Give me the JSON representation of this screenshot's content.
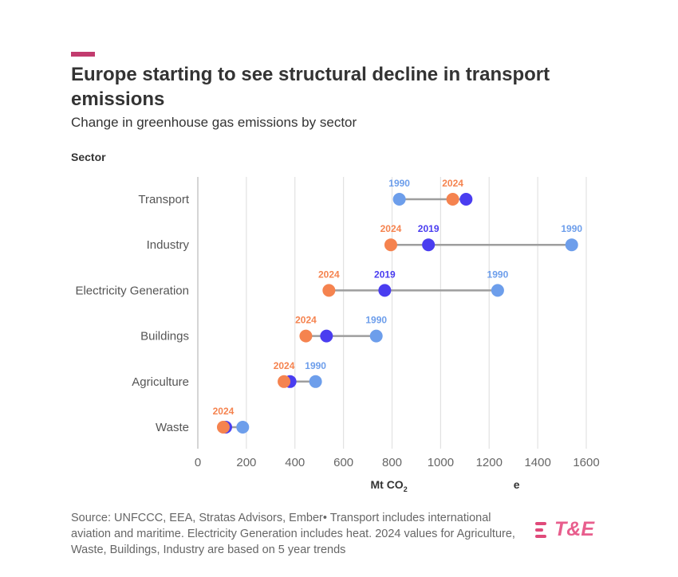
{
  "header": {
    "title": "Europe starting to see structural decline in transport emissions",
    "subtitle": "Change in greenhouse gas emissions by sector",
    "y_axis_title": "Sector"
  },
  "x_axis": {
    "label_main": "Mt CO",
    "label_sub": "2",
    "label_end": "e"
  },
  "footer": {
    "source": "Source: UNFCCC, EEA, Stratas Advisors, Ember• Transport includes international aviation and maritime. Electricity Generation includes heat. 2024 values for Agriculture, Waste, Buildings, Industry are based on 5 year trends",
    "logo_text": "T&E"
  },
  "colors": {
    "y1990": "#6d9eeb",
    "y2019": "#4a3df0",
    "y2024": "#f5834f",
    "line": "#9e9e9e",
    "grid": "#e2e2e2",
    "accent": "#c23b6e"
  },
  "chart_data": {
    "type": "dumbbell",
    "title": "Europe starting to see structural decline in transport emissions",
    "subtitle": "Change in greenhouse gas emissions by sector",
    "xlabel": "Mt CO2e",
    "ylabel": "Sector",
    "xlim": [
      0,
      1600
    ],
    "xticks": [
      0,
      200,
      400,
      600,
      800,
      1000,
      1200,
      1400,
      1600
    ],
    "series": [
      {
        "name": "1990",
        "values": [
          830,
          1540,
          1235,
          735,
          485,
          185
        ]
      },
      {
        "name": "2019",
        "values": [
          1105,
          950,
          770,
          530,
          380,
          115
        ]
      },
      {
        "name": "2024",
        "values": [
          1050,
          795,
          540,
          445,
          355,
          105
        ]
      }
    ],
    "categories": [
      "Transport",
      "Industry",
      "Electricity Generation",
      "Buildings",
      "Agriculture",
      "Waste"
    ],
    "point_labels": [
      [
        "1990",
        "2024"
      ],
      [
        "2024",
        "2019",
        "1990"
      ],
      [
        "2024",
        "2019",
        "1990"
      ],
      [
        "2024",
        "1990"
      ],
      [
        "2024",
        "1990"
      ],
      [
        "2024"
      ]
    ]
  }
}
